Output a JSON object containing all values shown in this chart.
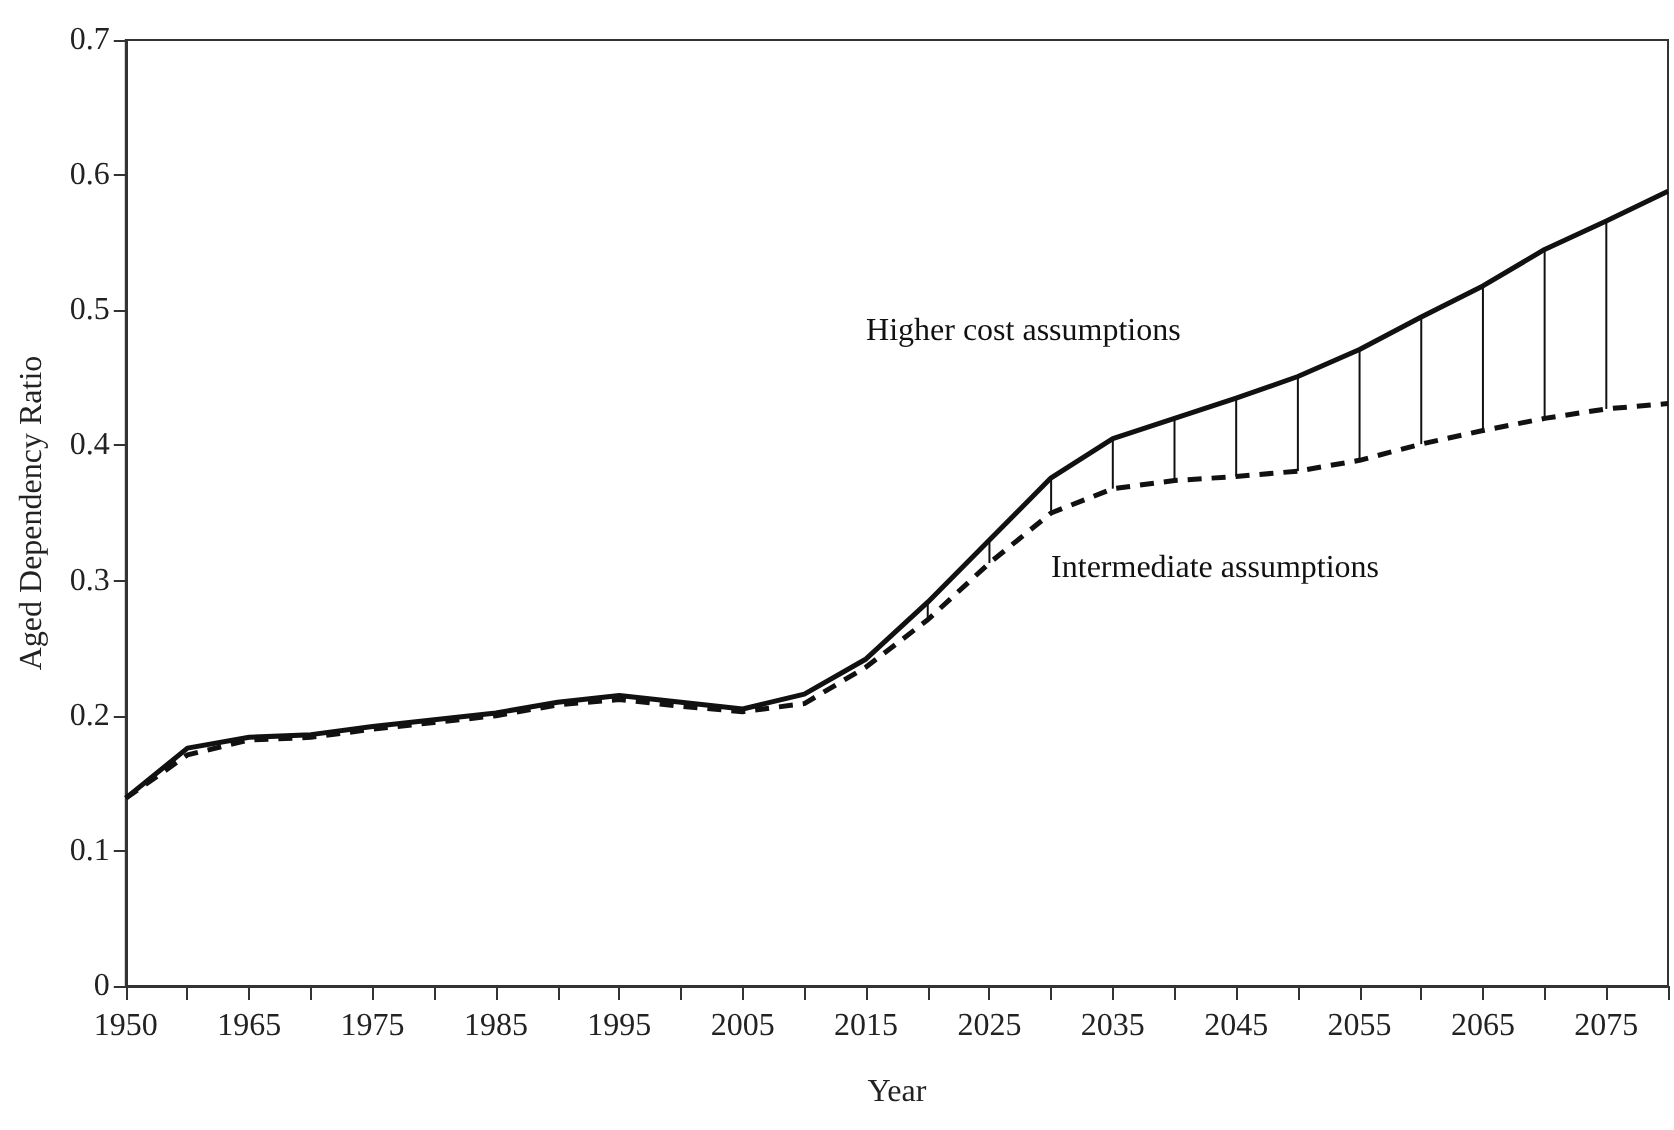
{
  "chart_data": {
    "type": "line",
    "xlabel": "Year",
    "ylabel": "Aged Dependency Ratio",
    "categories": [
      "1950",
      null,
      "1965",
      null,
      "1975",
      null,
      "1985",
      null,
      "1995",
      null,
      "2005",
      null,
      "2015",
      null,
      "2025",
      null,
      "2035",
      null,
      "2045",
      null,
      "2055",
      null,
      "2065",
      null,
      "2075",
      null
    ],
    "ylim": [
      0,
      0.7
    ],
    "yticks": [
      0,
      0.1,
      0.2,
      0.3,
      0.4,
      0.5,
      0.6,
      0.7
    ],
    "grid": false,
    "legend": false,
    "marker": "none",
    "series": [
      {
        "name": "Higher cost assumptions",
        "color": "#111111",
        "line_style": "solid",
        "values": [
          0.139,
          0.176,
          0.184,
          0.186,
          0.192,
          0.197,
          0.202,
          0.21,
          0.215,
          0.21,
          0.205,
          0.216,
          0.242,
          0.284,
          0.33,
          0.376,
          0.405,
          0.42,
          0.435,
          0.451,
          0.471,
          0.495,
          0.518,
          0.545,
          0.566,
          0.588
        ],
        "errors": [
          null,
          null,
          null,
          null,
          null,
          null,
          null,
          null,
          null,
          null,
          null,
          null,
          null,
          [
            0.271,
            0.284
          ],
          [
            0.313,
            0.33
          ],
          [
            0.35,
            0.376
          ],
          [
            0.368,
            0.405
          ],
          [
            0.374,
            0.42
          ],
          [
            0.377,
            0.435
          ],
          [
            0.381,
            0.451
          ],
          [
            0.389,
            0.471
          ],
          [
            0.401,
            0.495
          ],
          [
            0.411,
            0.518
          ],
          [
            0.42,
            0.545
          ],
          [
            0.427,
            0.566
          ],
          null
        ]
      },
      {
        "name": "Intermediate assumptions",
        "color": "#111111",
        "line_style": "dashed",
        "values": [
          0.139,
          0.171,
          0.182,
          0.184,
          0.19,
          0.195,
          0.2,
          0.208,
          0.212,
          0.207,
          0.203,
          0.209,
          0.236,
          0.271,
          0.313,
          0.35,
          0.368,
          0.374,
          0.377,
          0.381,
          0.389,
          0.401,
          0.411,
          0.42,
          0.427,
          0.431
        ]
      }
    ]
  }
}
